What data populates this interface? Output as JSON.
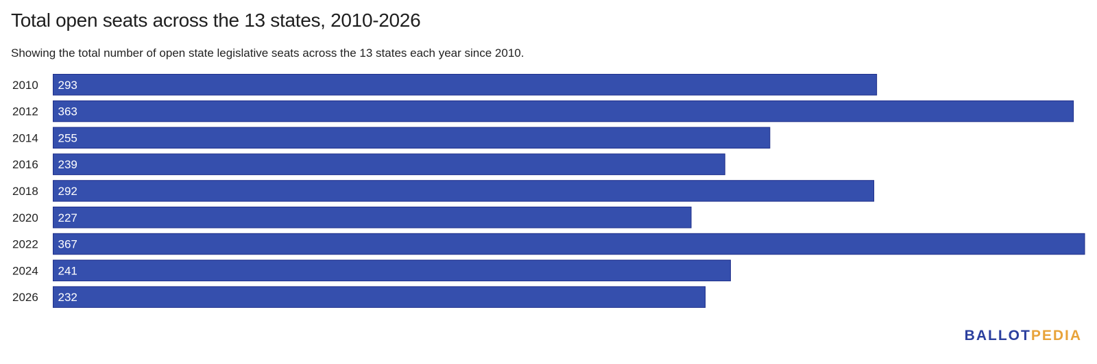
{
  "chart_data": {
    "type": "bar",
    "orientation": "horizontal",
    "title": "Total open seats across the 13 states, 2010-2026",
    "subtitle": "Showing the total number of open state legislative seats across the 13 states each year since 2010.",
    "xlabel": "",
    "ylabel": "",
    "categories": [
      "2010",
      "2012",
      "2014",
      "2016",
      "2018",
      "2020",
      "2022",
      "2024",
      "2026"
    ],
    "values": [
      293,
      363,
      255,
      239,
      292,
      227,
      367,
      241,
      232
    ],
    "xlim": [
      0,
      367
    ],
    "grid": false,
    "bar_color": "#354fad",
    "bar_stroke_color": "#1f2f8a"
  },
  "branding": {
    "logo_part_a": "BALLOT",
    "logo_part_b": "PEDIA",
    "logo_color_a": "#2b3f9e",
    "logo_color_b": "#e8a33a"
  }
}
